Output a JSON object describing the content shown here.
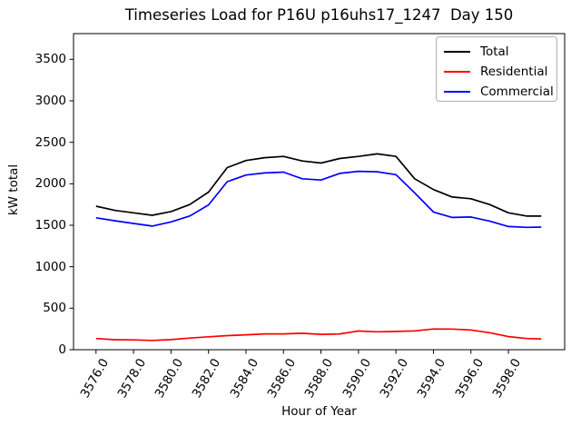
{
  "chart_data": {
    "type": "line",
    "title": "Timeseries Load for P16U p16uhs17_1247  Day 150",
    "xlabel": "Hour of Year",
    "ylabel": "kW total",
    "x": [
      3576,
      3577,
      3578,
      3579,
      3580,
      3581,
      3582,
      3583,
      3584,
      3585,
      3586,
      3587,
      3588,
      3589,
      3590,
      3591,
      3592,
      3593,
      3594,
      3595,
      3596,
      3597,
      3598,
      3599,
      3599.75
    ],
    "series": [
      {
        "name": "Total",
        "color": "#000000",
        "values": [
          1730,
          1680,
          1650,
          1620,
          1665,
          1750,
          1900,
          2195,
          2280,
          2315,
          2330,
          2275,
          2250,
          2305,
          2330,
          2360,
          2330,
          2060,
          1930,
          1840,
          1820,
          1750,
          1650,
          1610,
          1610
        ]
      },
      {
        "name": "Residential",
        "color": "#ff0000",
        "values": [
          135,
          120,
          118,
          112,
          122,
          140,
          155,
          170,
          180,
          190,
          190,
          198,
          185,
          190,
          225,
          216,
          220,
          227,
          250,
          248,
          238,
          205,
          158,
          135,
          130
        ]
      },
      {
        "name": "Commercial",
        "color": "#0000ff",
        "values": [
          1590,
          1555,
          1522,
          1490,
          1540,
          1612,
          1745,
          2025,
          2105,
          2130,
          2140,
          2060,
          2045,
          2125,
          2150,
          2145,
          2110,
          1890,
          1660,
          1594,
          1600,
          1550,
          1485,
          1475,
          1478
        ]
      }
    ],
    "xticks": {
      "values": [
        3576,
        3578,
        3580,
        3582,
        3584,
        3586,
        3588,
        3590,
        3592,
        3594,
        3596,
        3598
      ],
      "labels": [
        "3576.0",
        "3578.0",
        "3580.0",
        "3582.0",
        "3584.0",
        "3586.0",
        "3588.0",
        "3590.0",
        "3592.0",
        "3594.0",
        "3596.0",
        "3598.0"
      ]
    },
    "yticks": {
      "values": [
        0,
        500,
        1000,
        1500,
        2000,
        2500,
        3000,
        3500
      ],
      "labels": [
        "0",
        "500",
        "1000",
        "1500",
        "2000",
        "2500",
        "3000",
        "3500"
      ]
    },
    "xlim": [
      3574.8,
      3601.0
    ],
    "ylim": [
      0,
      3810
    ],
    "grid": false,
    "legend": {
      "position": "upper right",
      "entries": [
        "Total",
        "Residential",
        "Commercial"
      ]
    }
  }
}
